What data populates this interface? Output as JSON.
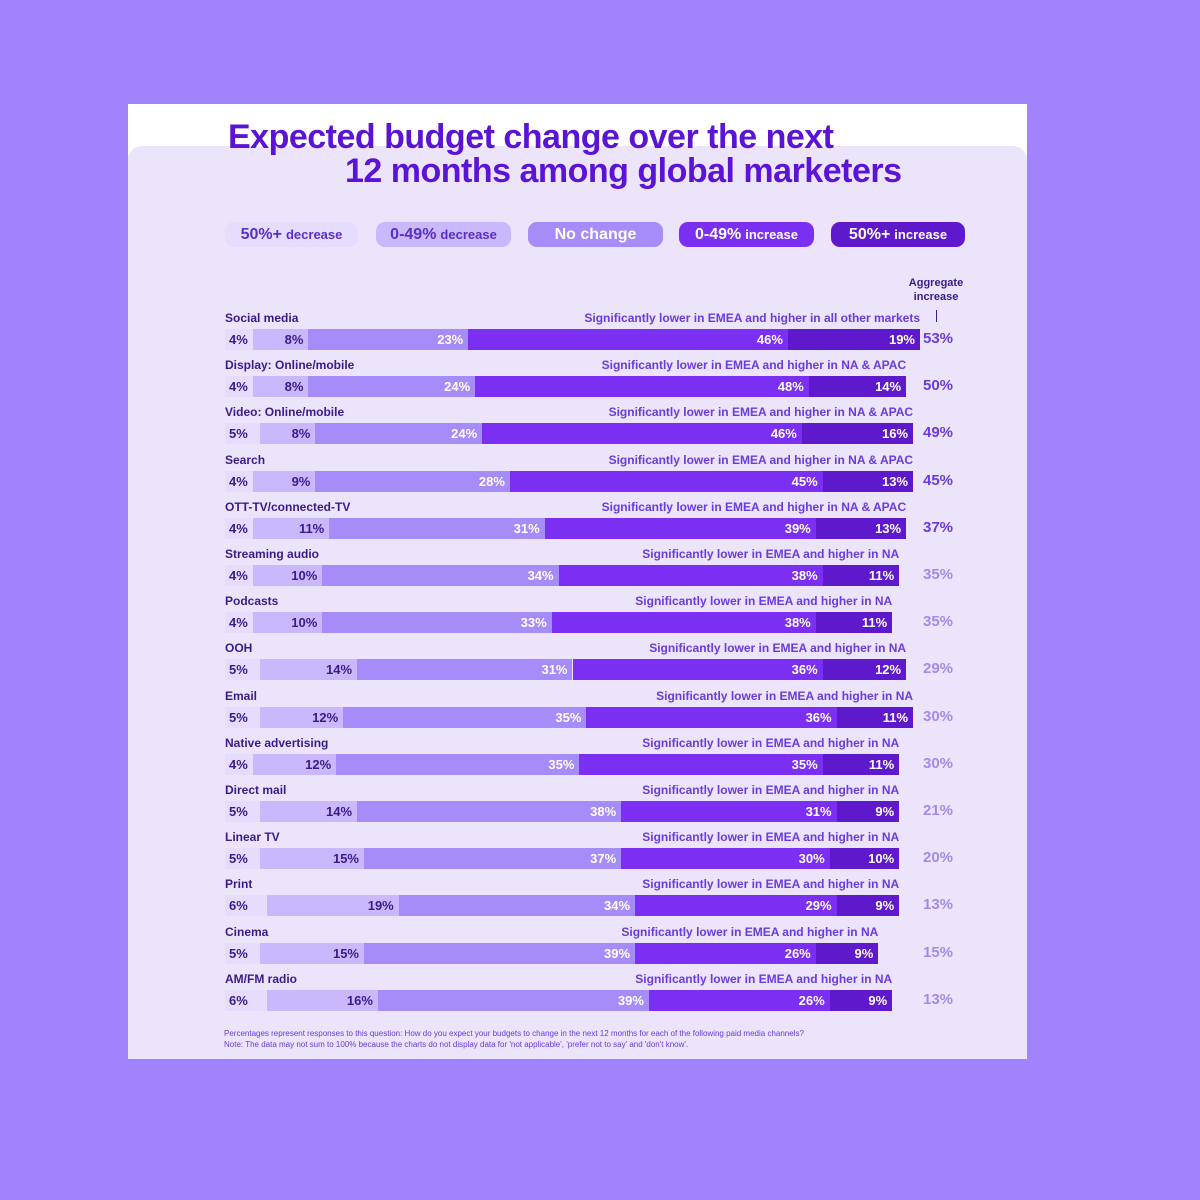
{
  "colors": {
    "page_bg": "#a083fd",
    "card": "#ebe4fb",
    "title": "#5b13d6",
    "dark_text": "#3a1b8c",
    "note_text": "#6a3be0",
    "agg_strong": "#6a3be0",
    "agg_light": "#a48be8"
  },
  "title": {
    "line1": "Expected budget change over the next",
    "line2": "12 months among global marketers"
  },
  "legend": [
    {
      "big": "50%+",
      "small": "decrease",
      "bg": "#e6dcfd",
      "fg": "#5a2fc9"
    },
    {
      "big": "0-49%",
      "small": "decrease",
      "bg": "#c9b8fb",
      "fg": "#5a2fc9"
    },
    {
      "big": "No change",
      "small": "",
      "bg": "#a68cf9",
      "fg": "#ffffff"
    },
    {
      "big": "0-49%",
      "small": "increase",
      "bg": "#7b2ff2",
      "fg": "#ffffff"
    },
    {
      "big": "50%+",
      "small": "increase",
      "bg": "#5e19cd",
      "fg": "#ffffff"
    }
  ],
  "agg_header": "Aggregate increase",
  "footnote": {
    "line1": "Percentages represent responses to this question: How do you expect your budgets to change in the next 12 months for each of the following paid media channels?",
    "line2": "Note: The data may not sum to 100% because the charts do not display data for 'not applicable', 'prefer not to say' and 'don't know'."
  },
  "chart_data": {
    "type": "bar",
    "stacked": true,
    "orientation": "horizontal",
    "title": "Expected budget change over the next 12 months among global marketers",
    "unit": "%",
    "series_names": [
      "50%+ decrease",
      "0-49% decrease",
      "No change",
      "0-49% increase",
      "50%+ increase"
    ],
    "series_colors": [
      "#e6dcfd",
      "#c9b8fb",
      "#a68cf9",
      "#7b2ff2",
      "#5e19cd"
    ],
    "categories": [
      "Social media",
      "Display: Online/mobile",
      "Video: Online/mobile",
      "Search",
      "OTT-TV/connected-TV",
      "Streaming audio",
      "Podcasts",
      "OOH",
      "Email",
      "Native advertising",
      "Direct mail",
      "Linear TV",
      "Print",
      "Cinema",
      "AM/FM radio"
    ],
    "rows": [
      {
        "label": "Social media",
        "values": [
          4,
          8,
          23,
          46,
          19
        ],
        "aggregate": "53%",
        "agg_highlight": true,
        "note": "Significantly lower in EMEA and higher in all other markets"
      },
      {
        "label": "Display: Online/mobile",
        "values": [
          4,
          8,
          24,
          48,
          14
        ],
        "aggregate": "50%",
        "agg_highlight": true,
        "note": "Significantly lower in EMEA and higher in NA & APAC"
      },
      {
        "label": "Video: Online/mobile",
        "values": [
          5,
          8,
          24,
          46,
          16
        ],
        "aggregate": "49%",
        "agg_highlight": true,
        "note": "Significantly lower in EMEA and higher in NA & APAC"
      },
      {
        "label": "Search",
        "values": [
          4,
          9,
          28,
          45,
          13
        ],
        "aggregate": "45%",
        "agg_highlight": true,
        "note": "Significantly lower in EMEA and higher in NA & APAC"
      },
      {
        "label": "OTT-TV/connected-TV",
        "values": [
          4,
          11,
          31,
          39,
          13
        ],
        "aggregate": "37%",
        "agg_highlight": true,
        "note": "Significantly lower in EMEA and higher in NA & APAC"
      },
      {
        "label": "Streaming audio",
        "values": [
          4,
          10,
          34,
          38,
          11
        ],
        "aggregate": "35%",
        "agg_highlight": false,
        "note": "Significantly lower in EMEA and higher in NA"
      },
      {
        "label": "Podcasts",
        "values": [
          4,
          10,
          33,
          38,
          11
        ],
        "aggregate": "35%",
        "agg_highlight": false,
        "note": "Significantly lower in EMEA and higher in NA"
      },
      {
        "label": "OOH",
        "values": [
          5,
          14,
          31,
          36,
          12
        ],
        "aggregate": "29%",
        "agg_highlight": false,
        "note": "Significantly lower in EMEA and higher in NA"
      },
      {
        "label": "Email",
        "values": [
          5,
          12,
          35,
          36,
          11
        ],
        "aggregate": "30%",
        "agg_highlight": false,
        "note": "Significantly lower in EMEA and higher in NA"
      },
      {
        "label": "Native advertising",
        "values": [
          4,
          12,
          35,
          35,
          11
        ],
        "aggregate": "30%",
        "agg_highlight": false,
        "note": "Significantly lower in EMEA and higher in NA"
      },
      {
        "label": "Direct mail",
        "values": [
          5,
          14,
          38,
          31,
          9
        ],
        "aggregate": "21%",
        "agg_highlight": false,
        "note": "Significantly lower in EMEA and higher in NA"
      },
      {
        "label": "Linear TV",
        "values": [
          5,
          15,
          37,
          30,
          10
        ],
        "aggregate": "20%",
        "agg_highlight": false,
        "note": "Significantly lower in EMEA and higher in NA"
      },
      {
        "label": "Print",
        "values": [
          6,
          19,
          34,
          29,
          9
        ],
        "aggregate": "13%",
        "agg_highlight": false,
        "note": "Significantly lower in EMEA and higher in NA"
      },
      {
        "label": "Cinema",
        "values": [
          5,
          15,
          39,
          26,
          9
        ],
        "aggregate": "15%",
        "agg_highlight": false,
        "note": "Significantly lower in EMEA and higher in NA"
      },
      {
        "label": "AM/FM radio",
        "values": [
          6,
          16,
          39,
          26,
          9
        ],
        "aggregate": "13%",
        "agg_highlight": false,
        "note": "Significantly lower in EMEA and higher in NA"
      }
    ]
  }
}
